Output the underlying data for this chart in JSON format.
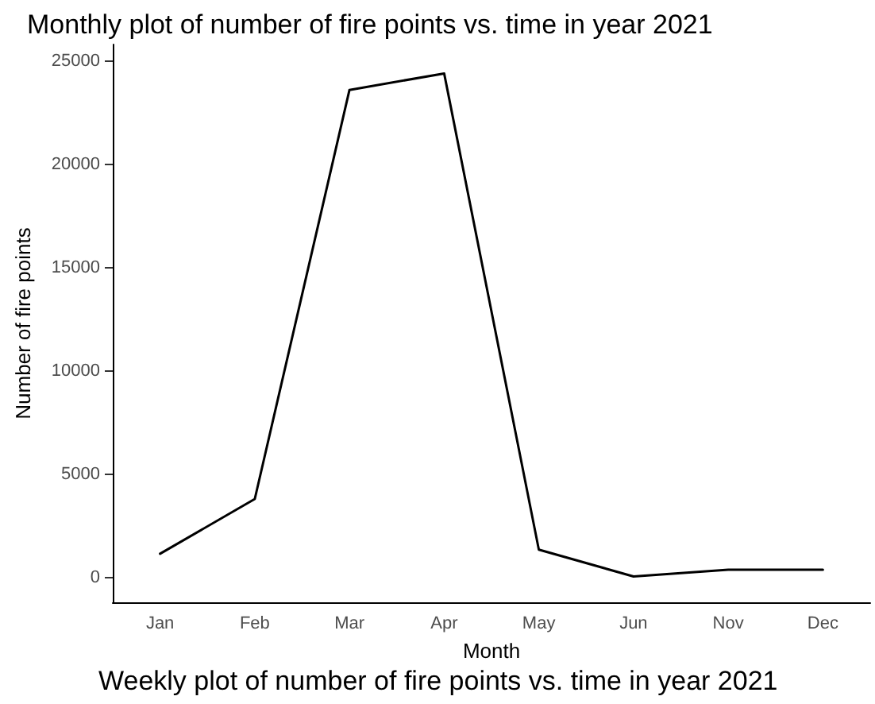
{
  "chart_data": {
    "type": "line",
    "title": "Monthly plot of number of fire points vs. time in year 2021",
    "xlabel": "Month",
    "ylabel": "Number of fire points",
    "categories": [
      "Jan",
      "Feb",
      "Mar",
      "Apr",
      "May",
      "Jun",
      "Nov",
      "Dec"
    ],
    "series": [
      {
        "color": "#000000",
        "values": [
          1150,
          3800,
          23600,
          24400,
          1350,
          50,
          380,
          380
        ]
      }
    ],
    "ylim": [
      -1200,
      25800
    ],
    "yticks": [
      0,
      5000,
      10000,
      15000,
      20000,
      25000
    ],
    "grid": false,
    "marker": "none",
    "line_style": "solid",
    "annotations": [
      "Weekly plot of number of fire points vs. time in year 2021"
    ]
  }
}
